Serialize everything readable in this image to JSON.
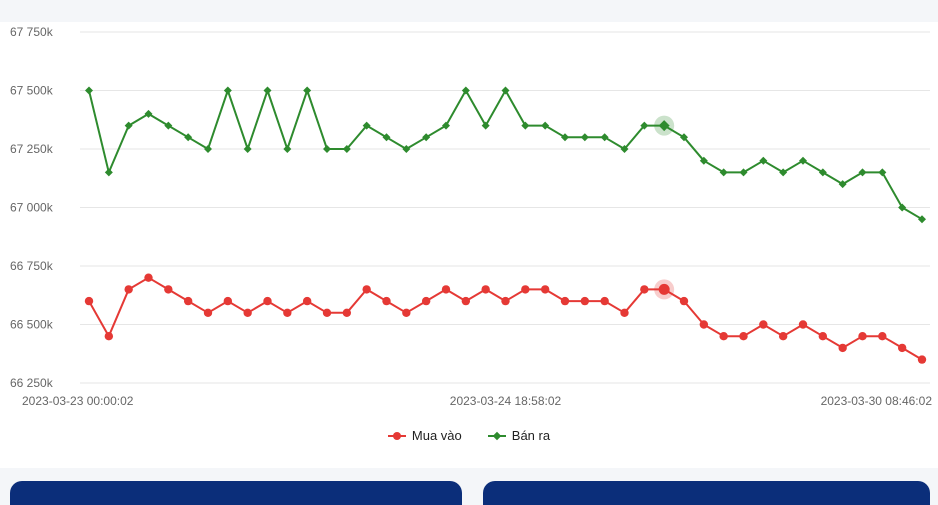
{
  "colors": {
    "buy": "#e53935",
    "sell": "#2e8b2e",
    "grid": "#e6e6e6",
    "axis_text": "#666666",
    "bar": "#0b2e7a"
  },
  "chart_data": {
    "type": "line",
    "xlabel": "",
    "ylabel": "",
    "ylim": [
      66250,
      67750
    ],
    "yticks": [
      {
        "value": 66250,
        "label": "66 250k"
      },
      {
        "value": 66500,
        "label": "66 500k"
      },
      {
        "value": 66750,
        "label": "66 750k"
      },
      {
        "value": 67000,
        "label": "67 000k"
      },
      {
        "value": 67250,
        "label": "67 250k"
      },
      {
        "value": 67500,
        "label": "67 500k"
      },
      {
        "value": 67750,
        "label": "67 750k"
      }
    ],
    "xticks": [
      {
        "index": 0,
        "label": "2023-03-23 00:00:02"
      },
      {
        "index": 21,
        "label": "2023-03-24 18:58:02"
      },
      {
        "index": 42,
        "label": "2023-03-30 08:46:02"
      }
    ],
    "highlight_index": 29,
    "series": [
      {
        "name": "Mua vào",
        "marker": "circle",
        "values": [
          66600,
          66450,
          66650,
          66700,
          66650,
          66600,
          66550,
          66600,
          66550,
          66600,
          66550,
          66600,
          66550,
          66550,
          66650,
          66600,
          66550,
          66600,
          66650,
          66600,
          66650,
          66600,
          66650,
          66650,
          66600,
          66600,
          66600,
          66550,
          66650,
          66650,
          66600,
          66500,
          66450,
          66450,
          66500,
          66450,
          66500,
          66450,
          66400,
          66450,
          66450,
          66400,
          66350
        ]
      },
      {
        "name": "Bán ra",
        "marker": "diamond",
        "values": [
          67500,
          67150,
          67350,
          67400,
          67350,
          67300,
          67250,
          67500,
          67250,
          67500,
          67250,
          67500,
          67250,
          67250,
          67350,
          67300,
          67250,
          67300,
          67350,
          67500,
          67350,
          67500,
          67350,
          67350,
          67300,
          67300,
          67300,
          67250,
          67350,
          67350,
          67300,
          67200,
          67150,
          67150,
          67200,
          67150,
          67200,
          67150,
          67100,
          67150,
          67150,
          67000,
          66950
        ]
      }
    ]
  },
  "legend": {
    "buy_label": "Mua vào",
    "sell_label": "Bán ra"
  }
}
